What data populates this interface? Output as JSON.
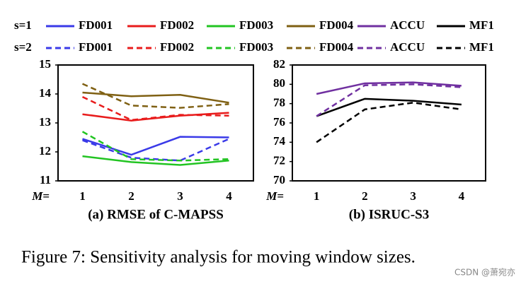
{
  "chart_data": [
    {
      "type": "line",
      "title": "(a) RMSE of C-MAPSS",
      "xlabel": "M=",
      "categories": [
        "1",
        "2",
        "3",
        "4"
      ],
      "ylim": [
        11,
        15
      ],
      "yticks": [
        11,
        12,
        13,
        14,
        15
      ],
      "series": [
        {
          "name": "FD001",
          "color": "#3a3ae8",
          "dash": "solid",
          "values": [
            12.45,
            11.9,
            12.52,
            12.5
          ]
        },
        {
          "name": "FD002",
          "color": "#e81c1c",
          "dash": "solid",
          "values": [
            13.3,
            13.08,
            13.25,
            13.35
          ]
        },
        {
          "name": "FD003",
          "color": "#22c422",
          "dash": "solid",
          "values": [
            11.85,
            11.65,
            11.55,
            11.7
          ]
        },
        {
          "name": "FD004",
          "color": "#7f6013",
          "dash": "solid",
          "values": [
            14.05,
            13.92,
            13.97,
            13.7
          ]
        },
        {
          "name": "FD001",
          "color": "#3a3ae8",
          "dash": "dashed",
          "values": [
            12.4,
            11.8,
            11.7,
            12.45
          ]
        },
        {
          "name": "FD002",
          "color": "#e81c1c",
          "dash": "dashed",
          "values": [
            13.9,
            13.1,
            13.28,
            13.25
          ]
        },
        {
          "name": "FD003",
          "color": "#22c422",
          "dash": "dashed",
          "values": [
            12.7,
            11.75,
            11.7,
            11.75
          ]
        },
        {
          "name": "FD004",
          "color": "#7f6013",
          "dash": "dashed",
          "values": [
            14.35,
            13.6,
            13.52,
            13.65
          ]
        }
      ]
    },
    {
      "type": "line",
      "title": "(b) ISRUC-S3",
      "xlabel": "M=",
      "categories": [
        "1",
        "2",
        "3",
        "4"
      ],
      "ylim": [
        70,
        82
      ],
      "yticks": [
        70,
        72,
        74,
        76,
        78,
        80,
        82
      ],
      "series": [
        {
          "name": "ACCU",
          "color": "#7030a0",
          "dash": "solid",
          "values": [
            79.0,
            80.1,
            80.2,
            79.85
          ]
        },
        {
          "name": "MF1",
          "color": "#000000",
          "dash": "solid",
          "values": [
            76.7,
            78.5,
            78.3,
            77.9
          ]
        },
        {
          "name": "ACCU",
          "color": "#7030a0",
          "dash": "dashed",
          "values": [
            76.7,
            79.9,
            80.0,
            79.7
          ]
        },
        {
          "name": "MF1",
          "color": "#000000",
          "dash": "dashed",
          "values": [
            74.0,
            77.4,
            78.1,
            77.4
          ]
        }
      ]
    }
  ],
  "legend": {
    "rows": [
      {
        "label": "s=1",
        "dash": "solid"
      },
      {
        "label": "s=2",
        "dash": "dashed"
      }
    ]
  },
  "caption": "Figure 7: Sensitivity analysis for moving window sizes.",
  "watermark": "CSDN @萧宛亦"
}
